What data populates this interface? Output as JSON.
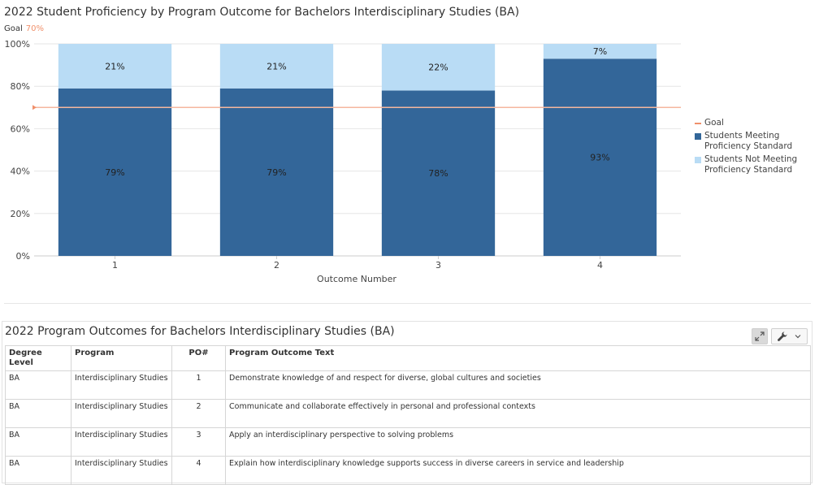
{
  "chart_data": {
    "type": "bar",
    "stacked": true,
    "title": "2022 Student Proficiency by Program Outcome for Bachelors Interdisciplinary Studies (BA)",
    "goal": {
      "label": "Goal",
      "value": 70,
      "value_label": "70%",
      "color": "#f0906b"
    },
    "xlabel": "Outcome Number",
    "ylabel": "",
    "categories": [
      "1",
      "2",
      "3",
      "4"
    ],
    "y_ticks": [
      "0%",
      "20%",
      "40%",
      "60%",
      "80%",
      "100%"
    ],
    "ylim": [
      0,
      100
    ],
    "grid": true,
    "legend_position": "right",
    "series": [
      {
        "name": "Students Meeting Proficiency Standard",
        "values": [
          79,
          79,
          78,
          93
        ],
        "labels": [
          "79%",
          "79%",
          "78%",
          "93%"
        ],
        "color": "#336699"
      },
      {
        "name": "Students Not Meeting Proficiency Standard",
        "values": [
          21,
          21,
          22,
          7
        ],
        "labels": [
          "21%",
          "21%",
          "22%",
          "7%"
        ],
        "color": "#b9dcf5"
      }
    ]
  },
  "legend": {
    "goal": "Goal",
    "meeting": "Students Meeting Proficiency Standard",
    "not_meeting": "Students Not Meeting Proficiency Standard"
  },
  "table_panel": {
    "title": "2022 Program Outcomes for Bachelors Interdisciplinary Studies (BA)",
    "expand_icon": "expand-icon",
    "tools_icon": "wrench-icon",
    "headers": {
      "degree": "Degree Level",
      "program": "Program",
      "po": "PO#",
      "text": "Program Outcome Text"
    },
    "rows": [
      {
        "degree": "BA",
        "program": "Interdisciplinary Studies",
        "po": "1",
        "text": "Demonstrate knowledge of and respect for diverse, global cultures and societies"
      },
      {
        "degree": "BA",
        "program": "Interdisciplinary Studies",
        "po": "2",
        "text": "Communicate and collaborate effectively in personal and professional contexts"
      },
      {
        "degree": "BA",
        "program": "Interdisciplinary Studies",
        "po": "3",
        "text": "Apply an interdisciplinary perspective to solving problems"
      },
      {
        "degree": "BA",
        "program": "Interdisciplinary Studies",
        "po": "4",
        "text": "Explain how interdisciplinary knowledge supports success in diverse careers in service and leadership"
      }
    ]
  }
}
